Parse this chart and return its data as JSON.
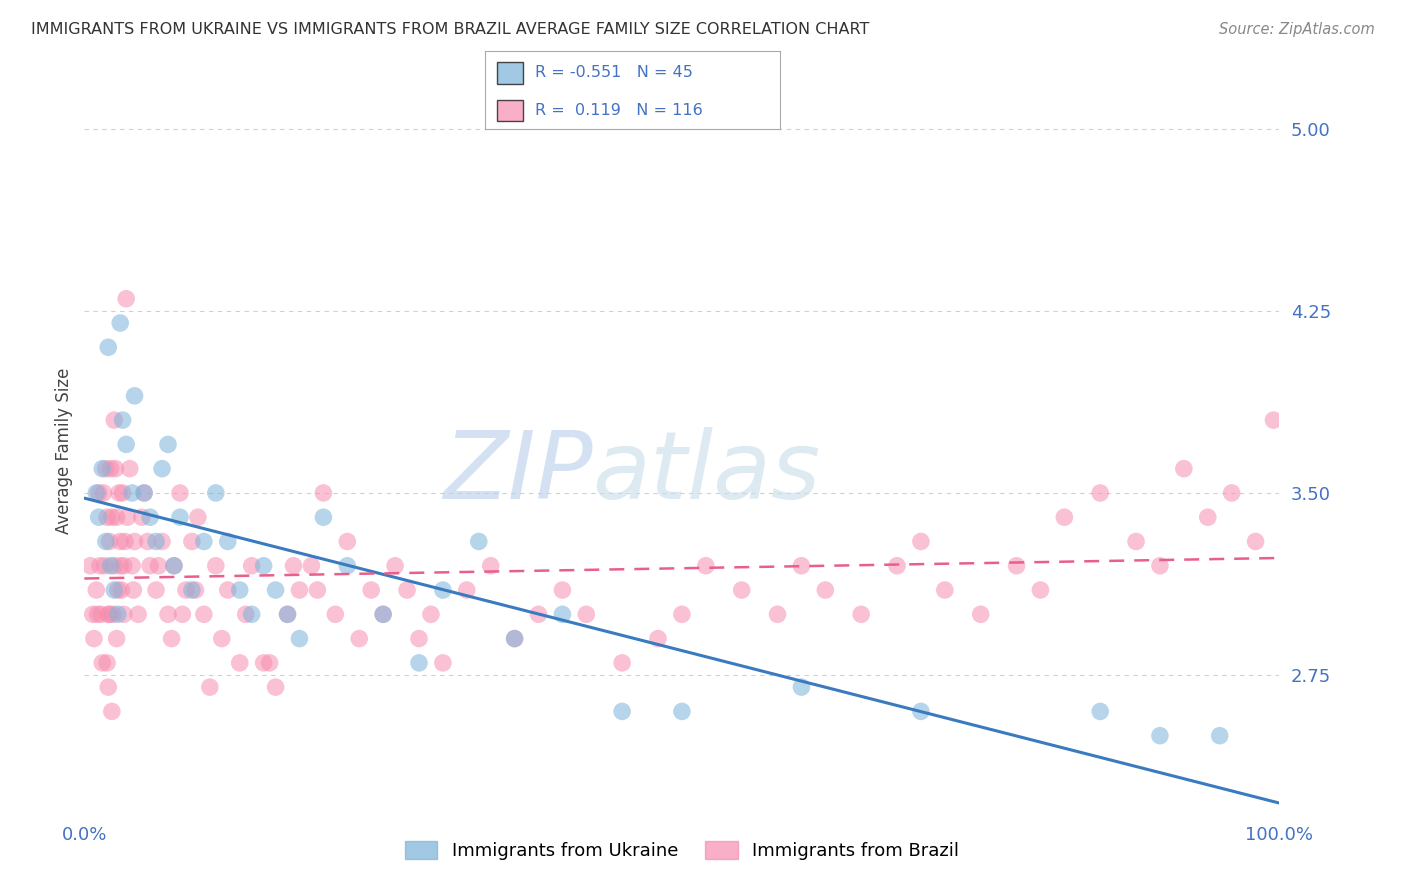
{
  "title": "IMMIGRANTS FROM UKRAINE VS IMMIGRANTS FROM BRAZIL AVERAGE FAMILY SIZE CORRELATION CHART",
  "source": "Source: ZipAtlas.com",
  "ylabel": "Average Family Size",
  "yticks": [
    2.75,
    3.5,
    4.25,
    5.0
  ],
  "xlim": [
    0.0,
    100.0
  ],
  "ylim": [
    2.15,
    5.2
  ],
  "ukraine_color": "#7ab3d9",
  "brazil_color": "#f78db0",
  "ukraine_R": -0.551,
  "ukraine_N": 45,
  "brazil_R": 0.119,
  "brazil_N": 116,
  "ukraine_scatter_x": [
    1.0,
    1.2,
    1.5,
    1.8,
    2.0,
    2.2,
    2.5,
    2.8,
    3.0,
    3.2,
    3.5,
    4.0,
    4.2,
    5.0,
    5.5,
    6.0,
    6.5,
    7.0,
    7.5,
    8.0,
    9.0,
    10.0,
    11.0,
    12.0,
    13.0,
    14.0,
    15.0,
    16.0,
    17.0,
    18.0,
    20.0,
    22.0,
    25.0,
    28.0,
    30.0,
    33.0,
    36.0,
    40.0,
    45.0,
    50.0,
    60.0,
    70.0,
    85.0,
    90.0,
    95.0
  ],
  "ukraine_scatter_y": [
    3.5,
    3.4,
    3.6,
    3.3,
    4.1,
    3.2,
    3.1,
    3.0,
    4.2,
    3.8,
    3.7,
    3.5,
    3.9,
    3.5,
    3.4,
    3.3,
    3.6,
    3.7,
    3.2,
    3.4,
    3.1,
    3.3,
    3.5,
    3.3,
    3.1,
    3.0,
    3.2,
    3.1,
    3.0,
    2.9,
    3.4,
    3.2,
    3.0,
    2.8,
    3.1,
    3.3,
    2.9,
    3.0,
    2.6,
    2.6,
    2.7,
    2.6,
    2.6,
    2.5,
    2.5
  ],
  "brazil_scatter_x": [
    0.5,
    0.7,
    0.8,
    1.0,
    1.1,
    1.2,
    1.3,
    1.4,
    1.5,
    1.6,
    1.7,
    1.8,
    1.9,
    2.0,
    2.0,
    2.1,
    2.2,
    2.3,
    2.4,
    2.5,
    2.5,
    2.6,
    2.7,
    2.8,
    2.9,
    3.0,
    3.0,
    3.2,
    3.3,
    3.4,
    3.5,
    3.6,
    3.8,
    4.0,
    4.2,
    4.5,
    4.8,
    5.0,
    5.5,
    6.0,
    6.5,
    7.0,
    7.5,
    8.0,
    8.5,
    9.0,
    9.5,
    10.0,
    11.0,
    12.0,
    13.0,
    14.0,
    15.0,
    16.0,
    17.0,
    18.0,
    19.0,
    20.0,
    21.0,
    22.0,
    23.0,
    24.0,
    25.0,
    26.0,
    27.0,
    28.0,
    29.0,
    30.0,
    32.0,
    34.0,
    36.0,
    38.0,
    40.0,
    42.0,
    45.0,
    48.0,
    50.0,
    52.0,
    55.0,
    58.0,
    60.0,
    62.0,
    65.0,
    68.0,
    70.0,
    72.0,
    75.0,
    78.0,
    80.0,
    82.0,
    85.0,
    88.0,
    90.0,
    92.0,
    94.0,
    96.0,
    98.0,
    99.5,
    2.1,
    3.1,
    2.3,
    1.9,
    2.7,
    3.3,
    4.1,
    5.3,
    6.2,
    7.3,
    8.2,
    9.3,
    10.5,
    11.5,
    13.5,
    15.5,
    17.5,
    19.5
  ],
  "brazil_scatter_y": [
    3.2,
    3.0,
    2.9,
    3.1,
    3.0,
    3.5,
    3.2,
    3.0,
    2.8,
    3.5,
    3.2,
    3.6,
    3.4,
    3.0,
    2.7,
    3.3,
    3.6,
    3.4,
    3.0,
    3.8,
    3.2,
    3.6,
    3.4,
    3.1,
    3.5,
    3.2,
    3.3,
    3.5,
    3.2,
    3.3,
    4.3,
    3.4,
    3.6,
    3.2,
    3.3,
    3.0,
    3.4,
    3.5,
    3.2,
    3.1,
    3.3,
    3.0,
    3.2,
    3.5,
    3.1,
    3.3,
    3.4,
    3.0,
    3.2,
    3.1,
    2.8,
    3.2,
    2.8,
    2.7,
    3.0,
    3.1,
    3.2,
    3.5,
    3.0,
    3.3,
    2.9,
    3.1,
    3.0,
    3.2,
    3.1,
    2.9,
    3.0,
    2.8,
    3.1,
    3.2,
    2.9,
    3.0,
    3.1,
    3.0,
    2.8,
    2.9,
    3.0,
    3.2,
    3.1,
    3.0,
    3.2,
    3.1,
    3.0,
    3.2,
    3.3,
    3.1,
    3.0,
    3.2,
    3.1,
    3.4,
    3.5,
    3.3,
    3.2,
    3.6,
    3.4,
    3.5,
    3.3,
    3.8,
    3.0,
    3.1,
    2.6,
    2.8,
    2.9,
    3.0,
    3.1,
    3.3,
    3.2,
    2.9,
    3.0,
    3.1,
    2.7,
    2.9,
    3.0,
    2.8,
    3.2,
    3.1
  ],
  "watermark_zip": "ZIP",
  "watermark_atlas": "atlas",
  "background_color": "#ffffff",
  "grid_color": "#cccccc",
  "title_color": "#333333",
  "tick_color": "#4472c4",
  "legend_border_color": "#aaaaaa",
  "ukraine_line_color": "#3a7bbf",
  "brazil_line_color": "#e85f8a"
}
